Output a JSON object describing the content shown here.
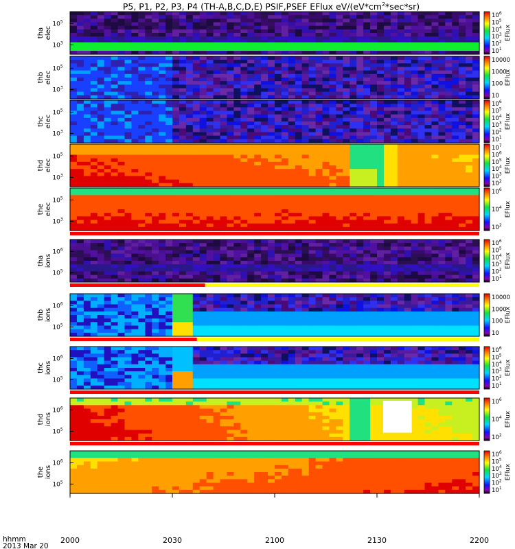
{
  "chart_data": {
    "type": "heatmap",
    "title": "P5, P1, P2, P3, P4 (TH-A,B,C,D,E) PSIF,PSEF EFlux eV/(eV*cm",
    "title_sup": "2",
    "title_end": "*sec*sr)",
    "time_axis": {
      "unit_label": "hhmm",
      "date_label": "2013 Mar 20",
      "ticks": [
        "2000",
        "2030",
        "2100",
        "2130",
        "2200"
      ],
      "tick_minutes": [
        0,
        30,
        60,
        90,
        120
      ],
      "range_minutes": [
        0,
        120
      ]
    },
    "colorbar_label": "EFlux",
    "panels": [
      {
        "id": "tha-elec",
        "probe": "tha",
        "species": "elec",
        "yticks": [
          5,
          3
        ],
        "cbar": "exp",
        "cbar_ticks": [
          6,
          5,
          4,
          3,
          2,
          1
        ],
        "style": "noise",
        "band": "green",
        "indicator": null
      },
      {
        "id": "thb-elec",
        "probe": "thb",
        "species": "elec",
        "yticks": [
          5,
          3
        ],
        "cbar": "linear",
        "cbar_ticks": [
          "10000",
          "1000",
          "100",
          "10"
        ],
        "style": "blocks",
        "band": null,
        "indicator": null
      },
      {
        "id": "thc-elec",
        "probe": "thc",
        "species": "elec",
        "yticks": [
          5,
          3
        ],
        "cbar": "exp",
        "cbar_ticks": [
          6,
          5,
          4,
          3,
          2,
          1
        ],
        "style": "blocks",
        "band": null,
        "indicator": null
      },
      {
        "id": "thd-elec",
        "probe": "thd",
        "species": "elec",
        "yticks": [
          5,
          3
        ],
        "cbar": "exp",
        "cbar_ticks": [
          7,
          6,
          5,
          4,
          3,
          2
        ],
        "style": "warm",
        "band": null,
        "indicator": null
      },
      {
        "id": "the-elec",
        "probe": "the",
        "species": "elec",
        "yticks": [
          5,
          3
        ],
        "cbar": "exp",
        "cbar_ticks": [
          6,
          4,
          2
        ],
        "style": "warm2",
        "band": null,
        "indicator": "red"
      },
      {
        "id": "tha-ions",
        "probe": "tha",
        "species": "ions",
        "yticks": [
          6,
          5
        ],
        "cbar": "exp",
        "cbar_ticks": [
          6,
          5,
          4,
          3,
          2,
          1
        ],
        "style": "noise",
        "band": null,
        "indicator": "red-yellow"
      },
      {
        "id": "thb-ions",
        "probe": "thb",
        "species": "ions",
        "yticks": [
          6,
          5
        ],
        "cbar": "linear",
        "cbar_ticks": [
          "10000",
          "1000",
          "100",
          "10"
        ],
        "style": "cold",
        "band": null,
        "indicator": "red-yellow2"
      },
      {
        "id": "thc-ions",
        "probe": "thc",
        "species": "ions",
        "yticks": [
          6,
          5
        ],
        "cbar": "exp",
        "cbar_ticks": [
          6,
          5,
          4,
          3,
          2,
          1
        ],
        "style": "cold2",
        "band": null,
        "indicator": "red"
      },
      {
        "id": "thd-ions",
        "probe": "thd",
        "species": "ions",
        "yticks": [
          6,
          5
        ],
        "cbar": "exp",
        "cbar_ticks": [
          6,
          4,
          2
        ],
        "style": "warm3",
        "band": null,
        "indicator": "red"
      },
      {
        "id": "the-ions",
        "probe": "the",
        "species": "ions",
        "yticks": [
          6,
          5
        ],
        "cbar": "exp",
        "cbar_ticks": [
          6,
          5,
          4,
          3,
          2,
          1
        ],
        "style": "warm4",
        "band": null,
        "indicator": null
      }
    ]
  }
}
